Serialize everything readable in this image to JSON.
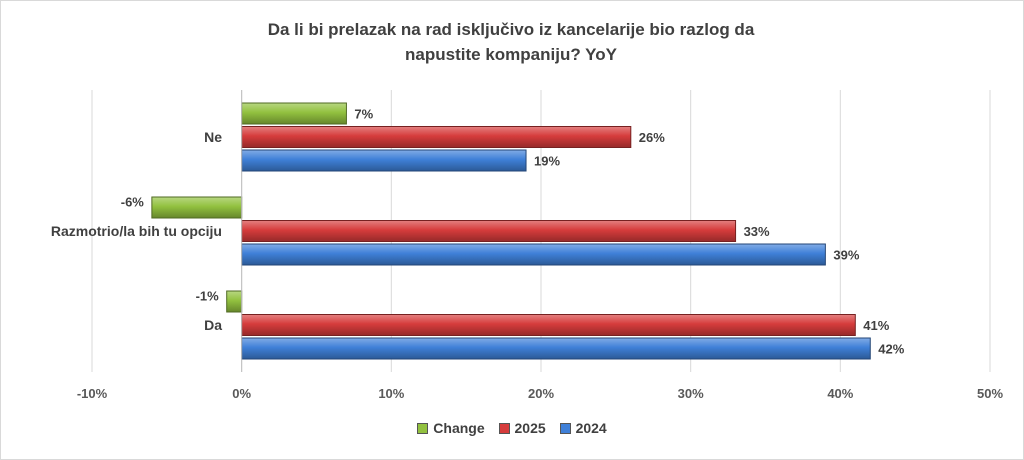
{
  "chart_data": {
    "type": "bar",
    "orientation": "horizontal",
    "title": "Da li bi prelazak na rad isključivo iz kancelarije bio razlog da napustite kompaniju? YoY",
    "categories": [
      "Ne",
      "Razmotrio/la bih tu opciju",
      "Da"
    ],
    "series": [
      {
        "name": "Change",
        "values": [
          7,
          -6,
          -1
        ],
        "labels": [
          "7%",
          "-6%",
          "-1%"
        ],
        "color": "#92c13f"
      },
      {
        "name": "2025",
        "values": [
          26,
          33,
          41
        ],
        "labels": [
          "26%",
          "33%",
          "41%"
        ],
        "color": "#d63c3c"
      },
      {
        "name": "2024",
        "values": [
          19,
          39,
          42
        ],
        "labels": [
          "19%",
          "39%",
          "42%"
        ],
        "color": "#3f80d8"
      }
    ],
    "xlim": [
      -10,
      50
    ],
    "x_ticks": [
      -10,
      0,
      10,
      20,
      30,
      40,
      50
    ],
    "x_tick_labels": [
      "-10%",
      "0%",
      "10%",
      "20%",
      "30%",
      "40%",
      "50%"
    ],
    "grid": true,
    "legend": "bottom"
  }
}
